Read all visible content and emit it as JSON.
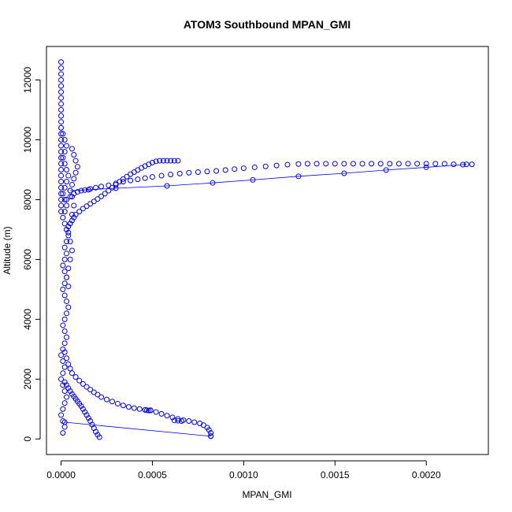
{
  "chart_data": {
    "type": "scatter",
    "title": "ATOM3 Southbound MPAN_GMI",
    "xlabel": "MPAN_GMI",
    "ylabel": "Altitude (m)",
    "xlim": [
      -8e-05,
      0.00234
    ],
    "ylim": [
      -520,
      13120
    ],
    "xticks": [
      0,
      0.0005,
      0.001,
      0.0015,
      0.002
    ],
    "xtick_labels": [
      "0.0000",
      "0.0005",
      "0.0010",
      "0.0015",
      "0.0020"
    ],
    "yticks": [
      0,
      2000,
      4000,
      6000,
      8000,
      10000,
      12000
    ],
    "ytick_labels": [
      "0",
      "2000",
      "4000",
      "6000",
      "8000",
      "10000",
      "12000"
    ],
    "grid": false,
    "legend": "none",
    "marker": "open-circle",
    "color": "#0000ff",
    "series": [
      {
        "x": [
          0.0,
          0.0,
          0.0,
          0.0,
          0.0,
          0.0,
          0.0,
          0.0,
          0.0,
          0.0,
          0.0,
          0.0,
          0.0,
          0.0,
          0.0,
          0.0,
          0.0,
          0.0,
          0.0,
          0.0,
          0.0,
          0.0,
          0.0,
          0.0,
          0.0,
          0.0
        ],
        "y": [
          12600,
          12400,
          12200,
          12000,
          11800,
          11600,
          11400,
          11200,
          11000,
          10800,
          10600,
          10400,
          10200,
          10000,
          9800,
          9600,
          9400,
          9200,
          9000,
          8800,
          8600,
          8400,
          8200,
          8000,
          7800,
          7600
        ]
      },
      {
        "x": [
          0.0,
          1e-05,
          2e-05,
          3e-05,
          2e-05,
          1e-05,
          2e-05,
          3e-05,
          4e-05,
          3e-05,
          2e-05,
          1e-05,
          2e-05,
          3e-05,
          2e-05,
          1e-05,
          2e-05,
          3e-05,
          4e-05,
          3e-05,
          2e-05,
          3e-05,
          2e-05,
          1e-05,
          2e-05,
          3e-05,
          2e-05,
          1e-05,
          2e-05,
          3e-05,
          4e-05,
          3e-05,
          2e-05,
          1e-05,
          2e-05,
          3e-05,
          2e-05,
          1e-05
        ],
        "y": [
          10400,
          10200,
          10000,
          9800,
          9600,
          9400,
          9200,
          9000,
          8800,
          8600,
          8400,
          8200,
          8000,
          7800,
          7600,
          7400,
          7200,
          7000,
          6800,
          6600,
          6400,
          6200,
          6000,
          5800,
          5600,
          5400,
          5200,
          5000,
          4800,
          4600,
          4400,
          4200,
          4000,
          3800,
          3600,
          3400,
          3200,
          3000
        ]
      },
      {
        "x": [
          6e-05,
          7e-05,
          8e-05,
          9e-05,
          8e-05,
          7e-05,
          6e-05,
          5e-05,
          6e-05,
          7e-05,
          6e-05,
          5e-05,
          4e-05,
          5e-05,
          6e-05,
          5e-05,
          4e-05,
          3e-05,
          4e-05
        ],
        "y": [
          9700,
          9500,
          9300,
          9100,
          8900,
          8700,
          8500,
          8300,
          8100,
          7800,
          7500,
          7200,
          6900,
          6600,
          6300,
          6000,
          5700,
          5400,
          5100
        ]
      },
      {
        "x": [
          3e-05,
          4e-05,
          5e-05,
          6e-05,
          7e-05,
          8e-05,
          0.0001,
          0.00012,
          0.00014,
          0.00016,
          0.00018,
          0.0002,
          0.00022,
          0.00024,
          0.00026,
          0.00028,
          0.0003,
          0.00032,
          0.00034,
          0.00036,
          0.00038,
          0.0004,
          0.00042,
          0.00044,
          0.00046,
          0.00048,
          0.0005,
          0.00052,
          0.00054,
          0.00056,
          0.00058,
          0.0006,
          0.00062,
          0.00064
        ],
        "y": [
          7000,
          7100,
          7200,
          7300,
          7400,
          7500,
          7600,
          7700,
          7780,
          7860,
          7940,
          8020,
          8110,
          8200,
          8300,
          8400,
          8500,
          8600,
          8690,
          8770,
          8850,
          8920,
          8990,
          9060,
          9120,
          9180,
          9240,
          9280,
          9300,
          9300,
          9300,
          9300,
          9300,
          9300
        ]
      },
      {
        "x": [
          3e-05,
          5e-05,
          7e-05,
          9e-05,
          0.00011,
          0.00013,
          0.00016,
          0.00019,
          0.00022,
          0.00026,
          0.0003,
          0.00034,
          0.00038,
          0.00042,
          0.00046,
          0.0005,
          0.00055,
          0.0006,
          0.00065,
          0.0007,
          0.00075,
          0.0008,
          0.00085,
          0.0009,
          0.00095,
          0.001,
          0.00106,
          0.00112,
          0.00118,
          0.00124,
          0.0013,
          0.00135,
          0.0014,
          0.00145,
          0.0015,
          0.00155,
          0.0016,
          0.00165,
          0.0017,
          0.00175,
          0.0018,
          0.00185,
          0.0019,
          0.00195,
          0.002,
          0.00205,
          0.0021,
          0.00215,
          0.0022,
          0.00225
        ],
        "y": [
          8000,
          8100,
          8200,
          8260,
          8300,
          8320,
          8360,
          8400,
          8440,
          8480,
          8540,
          8600,
          8640,
          8680,
          8720,
          8760,
          8800,
          8840,
          8870,
          8900,
          8920,
          8940,
          8960,
          8990,
          9020,
          9050,
          9080,
          9110,
          9140,
          9170,
          9190,
          9200,
          9200,
          9200,
          9200,
          9200,
          9200,
          9200,
          9200,
          9200,
          9200,
          9200,
          9200,
          9200,
          9200,
          9200,
          9200,
          9180,
          9170,
          9180
        ]
      },
      {
        "connected": true,
        "x": [
          5e-05,
          0.00015,
          0.0003,
          0.00058,
          0.00083,
          0.00105,
          0.0013,
          0.00155,
          0.00178,
          0.002,
          0.00222
        ],
        "y": [
          8300,
          8330,
          8380,
          8460,
          8560,
          8660,
          8780,
          8880,
          8990,
          9080,
          9180
        ]
      },
      {
        "x": [
          2e-05,
          3e-05,
          4e-05,
          5e-05,
          6e-05,
          8e-05,
          0.0001,
          0.00012,
          0.00014,
          0.00016,
          0.00018,
          0.0002,
          0.00022,
          0.00025,
          0.00028,
          0.00031,
          0.00034,
          0.00037,
          0.0004,
          0.00043,
          0.00046,
          0.00049,
          0.00052,
          0.00055,
          0.00058,
          0.00061,
          0.00064,
          0.00067,
          0.0007,
          0.00073,
          0.00076,
          0.00078,
          0.0008,
          0.00081,
          0.00082,
          0.00082
        ],
        "y": [
          2900,
          2700,
          2500,
          2350,
          2200,
          2070,
          1950,
          1840,
          1740,
          1650,
          1560,
          1480,
          1400,
          1320,
          1250,
          1180,
          1120,
          1070,
          1030,
          1000,
          970,
          950,
          900,
          840,
          780,
          720,
          670,
          630,
          600,
          560,
          520,
          460,
          380,
          300,
          200,
          100
        ]
      },
      {
        "x": [
          0.00046,
          0.00047,
          0.00048,
          0.00049,
          0.00062,
          0.00064,
          0.00066
        ],
        "y": [
          970,
          960,
          950,
          960,
          620,
          610,
          600
        ]
      },
      {
        "x": [
          2e-05,
          3e-05,
          4e-05,
          5e-05,
          6e-05,
          7e-05,
          8e-05,
          9e-05,
          0.0001,
          0.00011,
          0.00012,
          0.00013,
          0.00014,
          0.00015,
          0.00016,
          0.00017,
          0.00018,
          0.00019,
          0.0002,
          0.00021
        ],
        "y": [
          1900,
          1800,
          1700,
          1600,
          1500,
          1420,
          1340,
          1260,
          1180,
          1100,
          1000,
          900,
          800,
          700,
          600,
          480,
          360,
          240,
          140,
          60
        ]
      },
      {
        "connected": true,
        "x": [
          2e-05,
          0.00082
        ],
        "y": [
          560,
          90
        ]
      },
      {
        "x": [
          0.0,
          1e-05,
          2e-05,
          1e-05,
          0.0,
          1e-05,
          2e-05,
          3e-05,
          2e-05,
          1e-05,
          0.0,
          1e-05,
          2e-05,
          1e-05
        ],
        "y": [
          2800,
          2600,
          2400,
          2200,
          2000,
          1800,
          1600,
          1400,
          1200,
          1000,
          800,
          600,
          400,
          200
        ]
      }
    ]
  }
}
